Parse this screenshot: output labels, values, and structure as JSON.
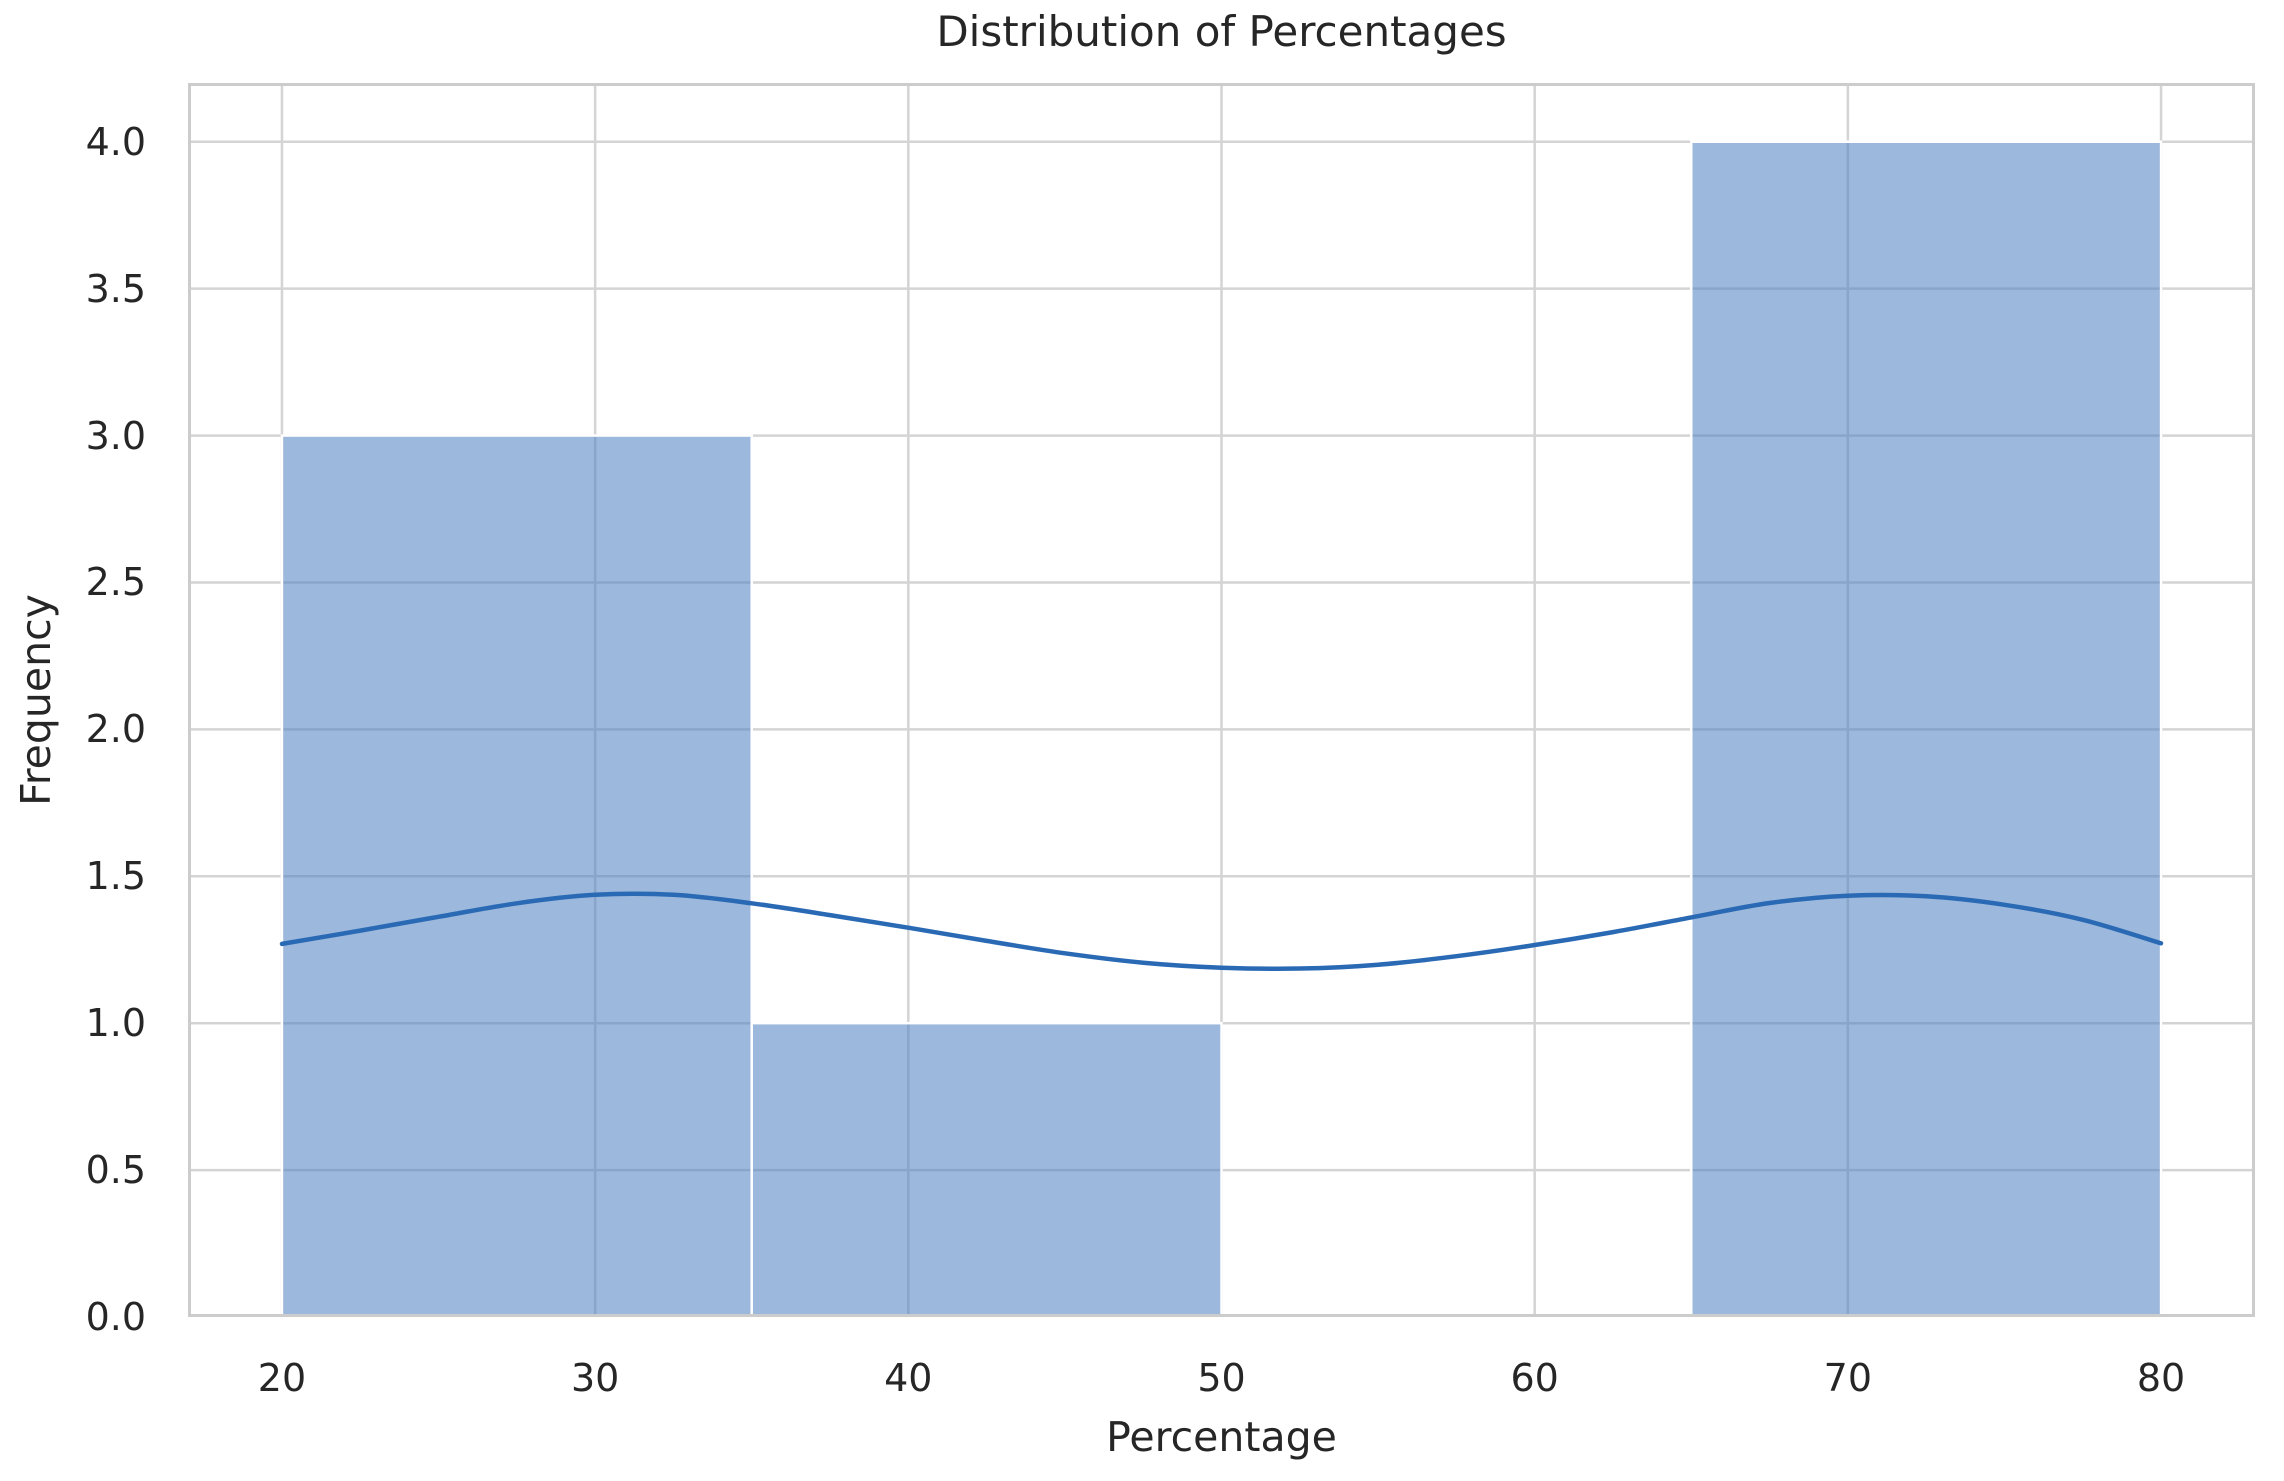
{
  "chart_data": {
    "type": "bar",
    "subtype": "histogram-with-kde",
    "title": "Distribution of Percentages",
    "xlabel": "Percentage",
    "ylabel": "Frequency",
    "xlim": [
      17,
      83
    ],
    "ylim": [
      0,
      4.2
    ],
    "grid": true,
    "legend": "none",
    "xticks": [
      20,
      30,
      40,
      50,
      60,
      70,
      80
    ],
    "xtick_labels": [
      "20",
      "30",
      "40",
      "50",
      "60",
      "70",
      "80"
    ],
    "yticks": [
      0,
      0.5,
      1,
      1.5,
      2,
      2.5,
      3,
      3.5,
      4
    ],
    "ytick_labels": [
      "0.0",
      "0.5",
      "1.0",
      "1.5",
      "2.0",
      "2.5",
      "3.0",
      "3.5",
      "4.0"
    ],
    "bars": [
      {
        "x0": 20,
        "x1": 35,
        "frequency": 3
      },
      {
        "x0": 35,
        "x1": 50,
        "frequency": 1
      },
      {
        "x0": 50,
        "x1": 65,
        "frequency": 0
      },
      {
        "x0": 65,
        "x1": 80,
        "frequency": 4
      }
    ],
    "kde": {
      "x": [
        20,
        22.5,
        25,
        27.5,
        30,
        32.5,
        35,
        37.5,
        40,
        42.5,
        45,
        47.5,
        50,
        52.5,
        55,
        57.5,
        60,
        62.5,
        65,
        67.5,
        70,
        72.5,
        75,
        77.5,
        80
      ],
      "y": [
        1.27,
        1.315,
        1.362,
        1.408,
        1.437,
        1.437,
        1.408,
        1.368,
        1.325,
        1.28,
        1.238,
        1.206,
        1.189,
        1.186,
        1.199,
        1.228,
        1.266,
        1.31,
        1.36,
        1.409,
        1.434,
        1.432,
        1.403,
        1.352,
        1.272
      ]
    },
    "colors": {
      "bar_fill": "#4a7ec0",
      "bar_fill_alpha": 0.55,
      "bar_edge": "#ffffff",
      "kde_line": "#2a6ab5",
      "grid_line": "#d4d4d4",
      "spine": "#cccccc",
      "text": "#262626",
      "background": "#ffffff"
    }
  }
}
